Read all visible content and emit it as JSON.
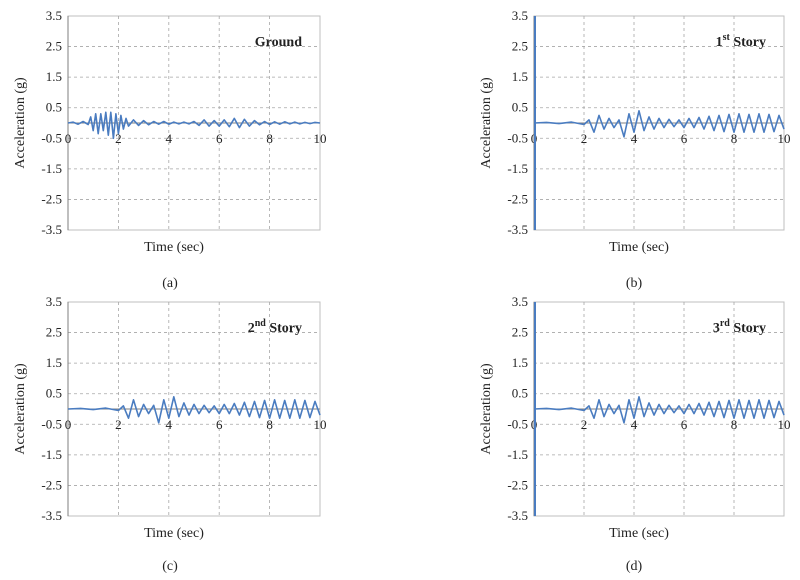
{
  "figure": {
    "line_color": "#4a7cc0",
    "grid_color": "#a6a6a6"
  },
  "chart_data": [
    {
      "type": "line",
      "caption": "(a)",
      "title": {
        "base": "Ground",
        "sup": "",
        "tail": ""
      },
      "xlabel": "Time (sec)",
      "ylabel": "Acceleration (g)",
      "xlim": [
        0,
        10
      ],
      "ylim": [
        -3.5,
        3.5
      ],
      "xticks": [
        "0",
        "2",
        "4",
        "6",
        "8",
        "10"
      ],
      "yticks": [
        "3.5",
        "2.5",
        "1.5",
        "0.5",
        "-0.5",
        "-1.5",
        "-2.5",
        "-3.5"
      ],
      "grid": true,
      "spike": false,
      "series": [
        {
          "x": [
            0,
            0.2,
            0.4,
            0.6,
            0.8,
            0.9,
            1.0,
            1.1,
            1.2,
            1.3,
            1.4,
            1.5,
            1.6,
            1.7,
            1.8,
            1.9,
            2.0,
            2.1,
            2.2,
            2.3,
            2.4,
            2.6,
            2.8,
            3.0,
            3.2,
            3.4,
            3.6,
            3.8,
            4.0,
            4.2,
            4.4,
            4.6,
            4.8,
            5.0,
            5.2,
            5.4,
            5.6,
            5.8,
            6.0,
            6.2,
            6.4,
            6.6,
            6.8,
            7.0,
            7.2,
            7.4,
            7.6,
            7.8,
            8.0,
            8.2,
            8.4,
            8.6,
            8.8,
            9.0,
            9.2,
            9.4,
            9.6,
            9.8,
            10.0
          ],
          "y": [
            0,
            0.03,
            -0.04,
            0.05,
            -0.05,
            0.2,
            -0.25,
            0.3,
            -0.35,
            0.3,
            -0.25,
            0.35,
            -0.4,
            0.35,
            -0.5,
            0.3,
            -0.35,
            0.25,
            -0.2,
            0.15,
            -0.1,
            0.1,
            -0.08,
            0.08,
            -0.06,
            0.05,
            -0.04,
            0.05,
            -0.04,
            0.03,
            -0.03,
            0.03,
            -0.03,
            0.05,
            -0.08,
            0.1,
            -0.1,
            0.08,
            -0.1,
            0.1,
            -0.12,
            0.15,
            -0.15,
            0.12,
            -0.1,
            0.08,
            -0.06,
            0.05,
            -0.05,
            0.04,
            -0.04,
            0.04,
            -0.03,
            0.03,
            -0.03,
            0.02,
            -0.02,
            0.02,
            0
          ]
        }
      ]
    },
    {
      "type": "line",
      "caption": "(b)",
      "title": {
        "base": "1",
        "sup": "st",
        "tail": " Story"
      },
      "xlabel": "Time (sec)",
      "ylabel": "Acceleration (g)",
      "xlim": [
        0,
        10
      ],
      "ylim": [
        -3.5,
        3.5
      ],
      "xticks": [
        "0",
        "2",
        "4",
        "6",
        "8",
        "10"
      ],
      "yticks": [
        "3.5",
        "2.5",
        "1.5",
        "0.5",
        "-0.5",
        "-1.5",
        "-2.5",
        "-3.5"
      ],
      "grid": true,
      "spike": true,
      "series": [
        {
          "x": [
            0,
            0.5,
            1.0,
            1.5,
            2.0,
            2.2,
            2.4,
            2.6,
            2.8,
            3.0,
            3.2,
            3.4,
            3.6,
            3.8,
            4.0,
            4.2,
            4.4,
            4.6,
            4.8,
            5.0,
            5.2,
            5.4,
            5.6,
            5.8,
            6.0,
            6.2,
            6.4,
            6.6,
            6.8,
            7.0,
            7.2,
            7.4,
            7.6,
            7.8,
            8.0,
            8.2,
            8.4,
            8.6,
            8.8,
            9.0,
            9.2,
            9.4,
            9.6,
            9.8,
            10.0
          ],
          "y": [
            0,
            0.02,
            -0.02,
            0.03,
            -0.05,
            0.1,
            -0.3,
            0.25,
            -0.2,
            0.15,
            -0.15,
            0.1,
            -0.45,
            0.3,
            -0.3,
            0.4,
            -0.25,
            0.2,
            -0.2,
            0.15,
            -0.15,
            0.12,
            -0.12,
            0.1,
            -0.15,
            0.15,
            -0.15,
            0.18,
            -0.2,
            0.22,
            -0.25,
            0.25,
            -0.28,
            0.28,
            -0.3,
            0.3,
            -0.3,
            0.28,
            -0.3,
            0.3,
            -0.3,
            0.28,
            -0.28,
            0.25,
            -0.2
          ]
        }
      ]
    },
    {
      "type": "line",
      "caption": "(c)",
      "title": {
        "base": "2",
        "sup": "nd",
        "tail": " Story"
      },
      "xlabel": "Time (sec)",
      "ylabel": "Acceleration (g)",
      "xlim": [
        0,
        10
      ],
      "ylim": [
        -3.5,
        3.5
      ],
      "xticks": [
        "0",
        "2",
        "4",
        "6",
        "8",
        "10"
      ],
      "yticks": [
        "3.5",
        "2.5",
        "1.5",
        "0.5",
        "-0.5",
        "-1.5",
        "-2.5",
        "-3.5"
      ],
      "grid": true,
      "spike": false,
      "series": [
        {
          "x": [
            0,
            0.5,
            1.0,
            1.5,
            2.0,
            2.2,
            2.4,
            2.6,
            2.8,
            3.0,
            3.2,
            3.4,
            3.6,
            3.8,
            4.0,
            4.2,
            4.4,
            4.6,
            4.8,
            5.0,
            5.2,
            5.4,
            5.6,
            5.8,
            6.0,
            6.2,
            6.4,
            6.6,
            6.8,
            7.0,
            7.2,
            7.4,
            7.6,
            7.8,
            8.0,
            8.2,
            8.4,
            8.6,
            8.8,
            9.0,
            9.2,
            9.4,
            9.6,
            9.8,
            10.0
          ],
          "y": [
            0,
            0.02,
            -0.02,
            0.03,
            -0.05,
            0.1,
            -0.3,
            0.3,
            -0.25,
            0.15,
            -0.15,
            0.12,
            -0.45,
            0.3,
            -0.3,
            0.4,
            -0.25,
            0.2,
            -0.2,
            0.15,
            -0.15,
            0.12,
            -0.12,
            0.1,
            -0.15,
            0.15,
            -0.15,
            0.18,
            -0.2,
            0.22,
            -0.25,
            0.25,
            -0.28,
            0.28,
            -0.3,
            0.3,
            -0.3,
            0.28,
            -0.3,
            0.3,
            -0.3,
            0.28,
            -0.28,
            0.25,
            -0.2
          ]
        }
      ]
    },
    {
      "type": "line",
      "caption": "(d)",
      "title": {
        "base": "3",
        "sup": "rd",
        "tail": " Story"
      },
      "xlabel": "Time (sec)",
      "ylabel": "Acceleration (g)",
      "xlim": [
        0,
        10
      ],
      "ylim": [
        -3.5,
        3.5
      ],
      "xticks": [
        "0",
        "2",
        "4",
        "6",
        "8",
        "10"
      ],
      "yticks": [
        "3.5",
        "2.5",
        "1.5",
        "0.5",
        "-0.5",
        "-1.5",
        "-2.5",
        "-3.5"
      ],
      "grid": true,
      "spike": true,
      "series": [
        {
          "x": [
            0,
            0.5,
            1.0,
            1.5,
            2.0,
            2.2,
            2.4,
            2.6,
            2.8,
            3.0,
            3.2,
            3.4,
            3.6,
            3.8,
            4.0,
            4.2,
            4.4,
            4.6,
            4.8,
            5.0,
            5.2,
            5.4,
            5.6,
            5.8,
            6.0,
            6.2,
            6.4,
            6.6,
            6.8,
            7.0,
            7.2,
            7.4,
            7.6,
            7.8,
            8.0,
            8.2,
            8.4,
            8.6,
            8.8,
            9.0,
            9.2,
            9.4,
            9.6,
            9.8,
            10.0
          ],
          "y": [
            0,
            0.02,
            -0.02,
            0.03,
            -0.05,
            0.1,
            -0.3,
            0.3,
            -0.25,
            0.15,
            -0.15,
            0.12,
            -0.45,
            0.3,
            -0.3,
            0.4,
            -0.25,
            0.2,
            -0.2,
            0.15,
            -0.15,
            0.12,
            -0.12,
            0.1,
            -0.15,
            0.15,
            -0.15,
            0.18,
            -0.2,
            0.22,
            -0.25,
            0.25,
            -0.28,
            0.28,
            -0.3,
            0.3,
            -0.3,
            0.28,
            -0.3,
            0.3,
            -0.3,
            0.28,
            -0.28,
            0.25,
            -0.2
          ]
        }
      ]
    }
  ]
}
